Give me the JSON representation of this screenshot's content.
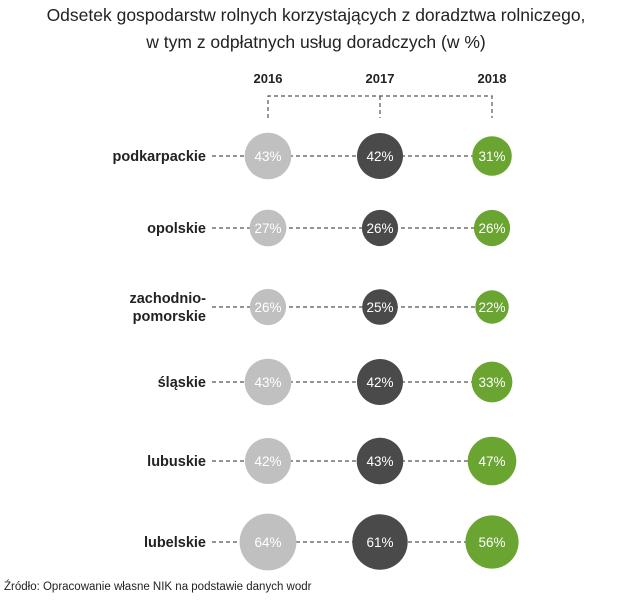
{
  "title_lines": [
    "Odsetek gospodarstw rolnych korzystających z doradztwa rolniczego,",
    "w tym z odpłatnych usług doradczych (w %)"
  ],
  "source": "Źródło: Opracowanie własne NIK na podstawie danych wodr",
  "colors": {
    "2016": "#c0c0c0",
    "2017": "#4a4a4a",
    "2018": "#6aa532"
  },
  "chart_data": {
    "type": "bubble-table",
    "columns": [
      "2016",
      "2017",
      "2018"
    ],
    "rows": [
      {
        "label": [
          "podkarpackie"
        ],
        "values": [
          43,
          42,
          31
        ]
      },
      {
        "label": [
          "opolskie"
        ],
        "values": [
          27,
          26,
          26
        ]
      },
      {
        "label": [
          "zachodnio-",
          "pomorskie"
        ],
        "values": [
          26,
          25,
          22
        ]
      },
      {
        "label": [
          "śląskie"
        ],
        "values": [
          43,
          42,
          33
        ]
      },
      {
        "label": [
          "lubuskie"
        ],
        "values": [
          42,
          43,
          47
        ]
      },
      {
        "label": [
          "lubelskie"
        ],
        "values": [
          64,
          61,
          56
        ]
      }
    ],
    "value_suffix": "%"
  }
}
